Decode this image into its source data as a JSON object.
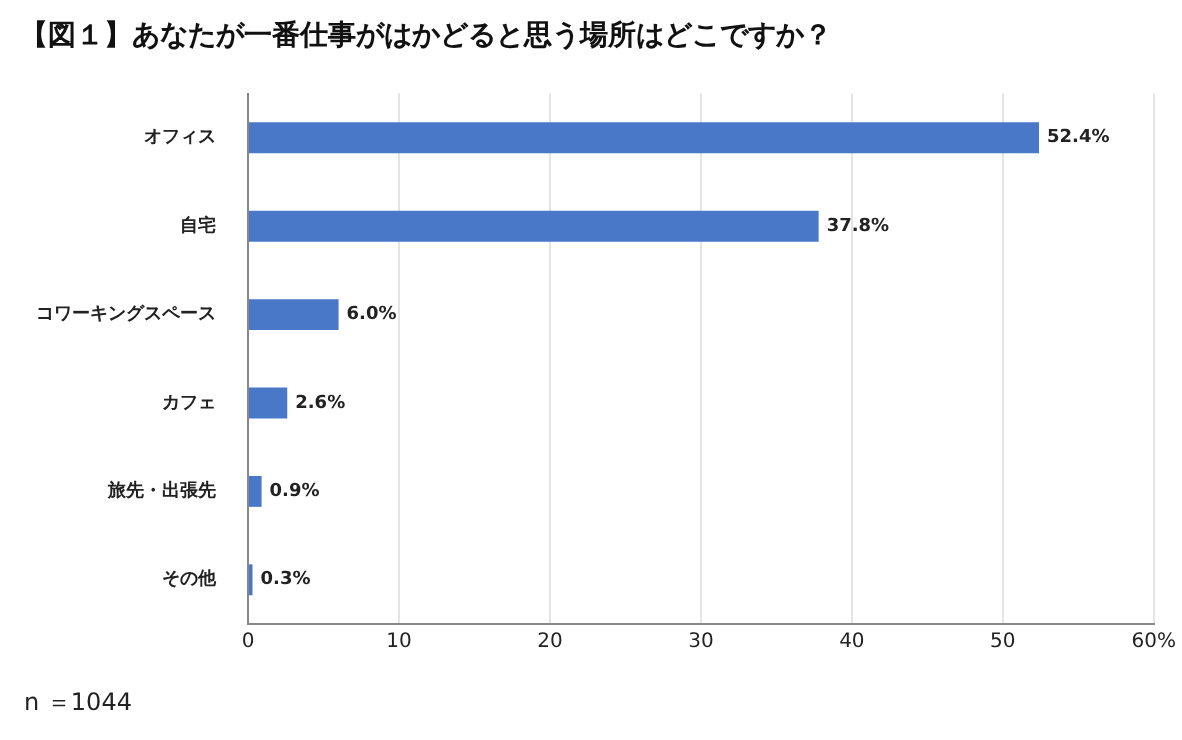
{
  "chart_data": {
    "type": "bar",
    "orientation": "horizontal",
    "title": "【図１】あなたが一番仕事がはかどると思う場所はどこですか？",
    "categories": [
      "オフィス",
      "自宅",
      "コワーキングスペース",
      "カフェ",
      "旅先・出張先",
      "その他"
    ],
    "values": [
      52.4,
      37.8,
      6.0,
      2.6,
      0.9,
      0.3
    ],
    "value_labels": [
      "52.4%",
      "37.8%",
      "6.0%",
      "2.6%",
      "0.9%",
      "0.3%"
    ],
    "color": "#4a78c8",
    "xlim": [
      0,
      60
    ],
    "xticks": [
      0,
      10,
      20,
      30,
      40,
      50,
      {
        "value": 60,
        "label": "60%"
      }
    ],
    "grid": "x",
    "legend": false,
    "annotations": [
      "n ＝1044"
    ]
  }
}
